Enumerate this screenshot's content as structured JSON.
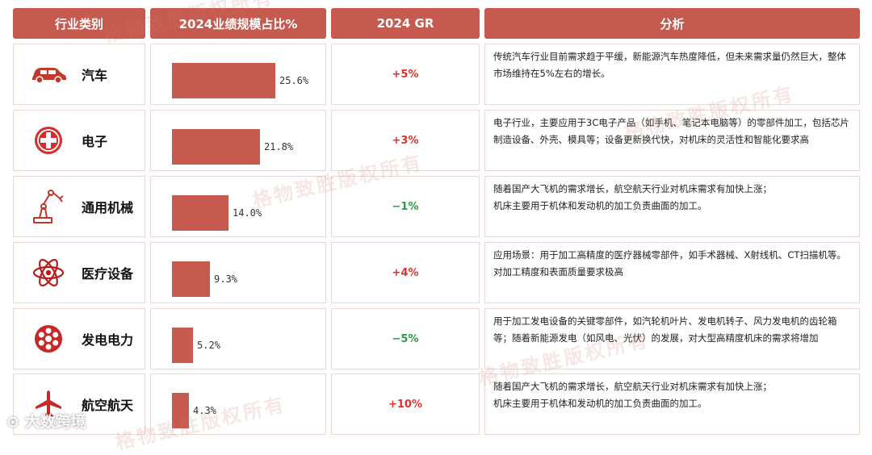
{
  "header": {
    "category": "行业类别",
    "share": "2024业绩规模占比%",
    "growth": "2024 GR",
    "analysis": "分析"
  },
  "colors": {
    "accent": "#c65a4e",
    "positive": "#e0302a",
    "negative": "#2b9a45"
  },
  "watermark": "格物致胜版权所有",
  "logo": "大数跨境",
  "chart_data": {
    "type": "table",
    "columns": [
      "行业类别",
      "2024业绩规模占比%",
      "2024 GR",
      "分析"
    ],
    "rows": [
      {
        "icon": "car-icon",
        "category": "汽车",
        "share": 25.6,
        "share_label": "25.6%",
        "growth": "+5%",
        "analysis": [
          "传统汽车行业目前需求趋于平缓，新能源汽车热度降低，但未来需求量仍然巨大，整体市场维持在5%左右的增长。"
        ]
      },
      {
        "icon": "medical-cross-icon",
        "category": "电子",
        "share": 21.8,
        "share_label": "21.8%",
        "growth": "+3%",
        "analysis": [
          "电子行业，主要应用于3C电子产品（如手机、笔记本电脑等）的零部件加工，包括芯片制造设备、外壳、模具等；设备更新换代快，对机床的灵活性和智能化要求高"
        ]
      },
      {
        "icon": "robot-arm-icon",
        "category": "通用机械",
        "share": 14.0,
        "share_label": "14.0%",
        "growth": "−1%",
        "analysis": [
          "随着国产大飞机的需求增长，航空航天行业对机床需求有加快上涨；",
          "机床主要用于机体和发动机的加工负责曲面的加工。"
        ]
      },
      {
        "icon": "atom-icon",
        "category": "医疗设备",
        "share": 9.3,
        "share_label": "9.3%",
        "growth": "+4%",
        "analysis": [
          "应用场景：用于加工高精度的医疗器械零部件，如手术器械、X射线机、CT扫描机等。",
          "对加工精度和表面质量要求极高"
        ]
      },
      {
        "icon": "turbine-icon",
        "category": "发电电力",
        "share": 5.2,
        "share_label": "5.2%",
        "growth": "−5%",
        "analysis": [
          "用于加工发电设备的关键零部件，如汽轮机叶片、发电机转子、风力发电机的齿轮箱等；随着新能源发电（如风电、光伏）的发展，对大型高精度机床的需求将增加"
        ]
      },
      {
        "icon": "airplane-icon",
        "category": "航空航天",
        "share": 4.3,
        "share_label": "4.3%",
        "growth": "+10%",
        "analysis": [
          "随着国产大飞机的需求增长，航空航天行业对机床需求有加快上涨；",
          "机床主要用于机体和发动机的加工负责曲面的加工。"
        ]
      }
    ]
  }
}
